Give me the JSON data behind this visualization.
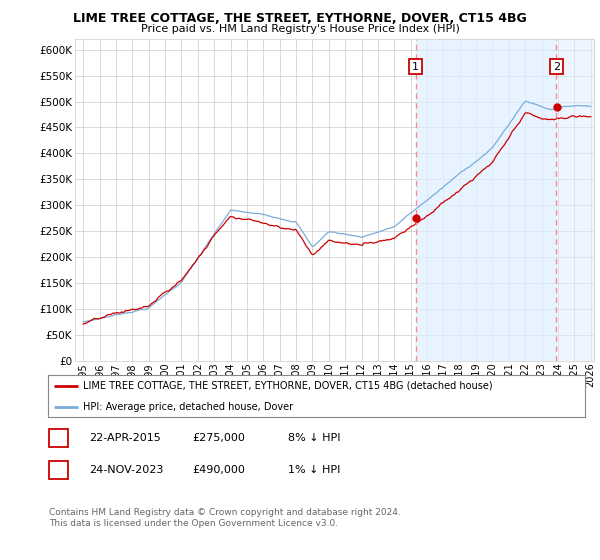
{
  "title": "LIME TREE COTTAGE, THE STREET, EYTHORNE, DOVER, CT15 4BG",
  "subtitle": "Price paid vs. HM Land Registry's House Price Index (HPI)",
  "ylim": [
    0,
    620000
  ],
  "yticks": [
    0,
    50000,
    100000,
    150000,
    200000,
    250000,
    300000,
    350000,
    400000,
    450000,
    500000,
    550000,
    600000
  ],
  "ytick_labels": [
    "£0",
    "£50K",
    "£100K",
    "£150K",
    "£200K",
    "£250K",
    "£300K",
    "£350K",
    "£400K",
    "£450K",
    "£500K",
    "£550K",
    "£600K"
  ],
  "xlim_start": 1994.5,
  "xlim_end": 2026.2,
  "xticks": [
    1995,
    1996,
    1997,
    1998,
    1999,
    2000,
    2001,
    2002,
    2003,
    2004,
    2005,
    2006,
    2007,
    2008,
    2009,
    2010,
    2011,
    2012,
    2013,
    2014,
    2015,
    2016,
    2017,
    2018,
    2019,
    2020,
    2021,
    2022,
    2023,
    2024,
    2025,
    2026
  ],
  "transaction1_x": 2015.3,
  "transaction1_y": 275000,
  "transaction1_label": "1",
  "transaction1_date": "22-APR-2015",
  "transaction1_price": "£275,000",
  "transaction1_hpi": "8% ↓ HPI",
  "transaction2_x": 2023.9,
  "transaction2_y": 490000,
  "transaction2_label": "2",
  "transaction2_date": "24-NOV-2023",
  "transaction2_price": "£490,000",
  "transaction2_hpi": "1% ↓ HPI",
  "hpi_color": "#7aaddc",
  "price_color": "#cc0000",
  "vline_color": "#ff8888",
  "grid_color": "#cccccc",
  "background_color": "#ffffff",
  "plot_bg_color": "#ffffff",
  "shade_color": "#ddeeff",
  "legend_label1": "LIME TREE COTTAGE, THE STREET, EYTHORNE, DOVER, CT15 4BG (detached house)",
  "legend_label2": "HPI: Average price, detached house, Dover",
  "footnote": "Contains HM Land Registry data © Crown copyright and database right 2024.\nThis data is licensed under the Open Government Licence v3.0."
}
